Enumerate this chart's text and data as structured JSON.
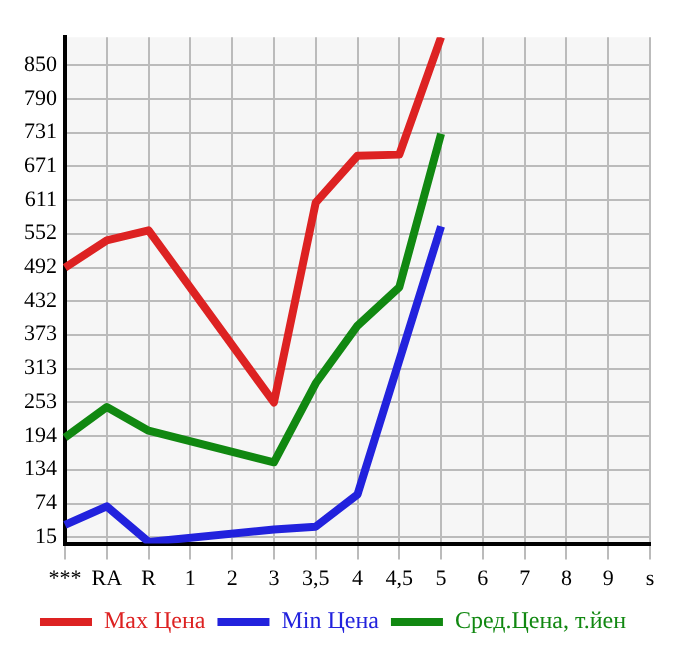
{
  "chart_data": {
    "type": "line",
    "categories": [
      "***",
      "RA",
      "R",
      "1",
      "2",
      "3",
      "3,5",
      "4",
      "4,5",
      "5",
      "6",
      "7",
      "8",
      "9",
      "s"
    ],
    "series": [
      {
        "name": "Max Цена",
        "color": "#dd2222",
        "values": [
          492,
          540,
          558,
          null,
          null,
          253,
          607,
          690,
          692,
          900,
          null,
          null,
          null,
          null,
          null
        ]
      },
      {
        "name": "Min Цена",
        "color": "#2222dd",
        "values": [
          36,
          69,
          6,
          null,
          null,
          28,
          33,
          90,
          null,
          565,
          null,
          null,
          null,
          null,
          null
        ]
      },
      {
        "name": "Сред.Цена, т.йен",
        "color": "#118811",
        "values": [
          191,
          245,
          203,
          null,
          null,
          147,
          287,
          389,
          457,
          729,
          null,
          null,
          null,
          null,
          null
        ]
      }
    ],
    "ylim": [
      3,
      900
    ],
    "yticks": [
      15,
      74,
      134,
      194,
      253,
      313,
      373,
      432,
      492,
      552,
      611,
      671,
      731,
      790,
      850
    ],
    "grid": true,
    "legend": "bottom",
    "marker": "none"
  }
}
